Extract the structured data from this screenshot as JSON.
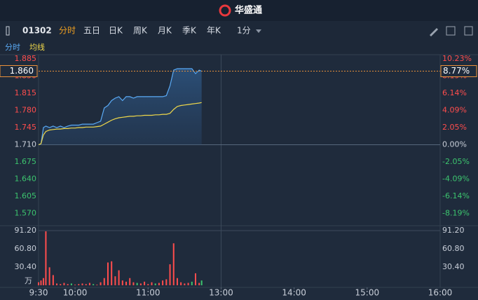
{
  "header": {
    "title": "华盛通"
  },
  "toolbar": {
    "code": "01302",
    "tabs": [
      "分时",
      "五日",
      "日K",
      "周K",
      "月K",
      "季K",
      "年K",
      "1分"
    ]
  },
  "chart_data": {
    "type": "line",
    "legend": [
      "分时",
      "均线"
    ],
    "xlim": [
      0,
      330
    ],
    "xticks": [
      {
        "value": 0,
        "label": "9:30"
      },
      {
        "value": 30,
        "label": "10:00"
      },
      {
        "value": 90,
        "label": "11:00"
      },
      {
        "value": 150,
        "label": "13:00"
      },
      {
        "value": 210,
        "label": "14:00"
      },
      {
        "value": 270,
        "label": "15:00"
      },
      {
        "value": 330,
        "label": "16:00"
      }
    ],
    "ylim": [
      1.545,
      1.885
    ],
    "yticks": [
      1.885,
      {
        "value": 1.85,
        "label": "1.850"
      },
      1.815,
      {
        "value": 1.78,
        "label": "1.780"
      },
      1.745,
      {
        "value": 1.71,
        "label": "1.710"
      },
      1.675,
      {
        "value": 1.64,
        "label": "1.640"
      },
      1.605,
      {
        "value": 1.57,
        "label": "1.570"
      }
    ],
    "y2lim": [
      -9.65,
      10.23
    ],
    "y2ticks": [
      {
        "value": 10.23,
        "label": "10.23%"
      },
      {
        "value": 8.19,
        "label": "8.19%"
      },
      {
        "value": 6.14,
        "label": "6.14%"
      },
      {
        "value": 4.09,
        "label": "4.09%"
      },
      {
        "value": 2.05,
        "label": "2.05%"
      },
      {
        "value": 0,
        "label": "0.00%"
      },
      {
        "value": -2.05,
        "label": "-2.05%"
      },
      {
        "value": -4.09,
        "label": "-4.09%"
      },
      {
        "value": -6.14,
        "label": "-6.14%"
      },
      {
        "value": -8.19,
        "label": "-8.19%"
      }
    ],
    "up_color": "#ff4d4d",
    "down_color": "#3cc46e",
    "flat_color": "#c8ced8",
    "x": [
      0,
      2,
      4,
      6,
      9,
      12,
      15,
      18,
      21,
      24,
      27,
      30,
      33,
      36,
      39,
      42,
      45,
      48,
      51,
      54,
      57,
      60,
      63,
      66,
      69,
      72,
      75,
      78,
      81,
      84,
      87,
      90,
      93,
      96,
      99,
      102,
      105,
      108,
      111,
      114,
      117,
      120,
      123,
      126,
      129,
      132,
      134
    ],
    "series": [
      {
        "name": "分时",
        "color": "#5aaaf5",
        "values": [
          1.71,
          1.712,
          1.745,
          1.748,
          1.745,
          1.748,
          1.745,
          1.748,
          1.745,
          1.748,
          1.75,
          1.75,
          1.75,
          1.752,
          1.752,
          1.752,
          1.752,
          1.755,
          1.758,
          1.785,
          1.79,
          1.8,
          1.805,
          1.808,
          1.8,
          1.808,
          1.808,
          1.805,
          1.808,
          1.808,
          1.808,
          1.808,
          1.808,
          1.808,
          1.808,
          1.808,
          1.81,
          1.83,
          1.862,
          1.865,
          1.865,
          1.865,
          1.865,
          1.865,
          1.855,
          1.862,
          1.86
        ]
      },
      {
        "name": "均线",
        "color": "#f0d84a",
        "values": [
          1.71,
          1.712,
          1.73,
          1.737,
          1.74,
          1.741,
          1.742,
          1.742,
          1.743,
          1.743,
          1.744,
          1.744,
          1.745,
          1.745,
          1.746,
          1.746,
          1.746,
          1.747,
          1.748,
          1.752,
          1.756,
          1.76,
          1.763,
          1.765,
          1.766,
          1.767,
          1.768,
          1.768,
          1.769,
          1.769,
          1.77,
          1.77,
          1.77,
          1.771,
          1.771,
          1.772,
          1.772,
          1.774,
          1.782,
          1.788,
          1.79,
          1.791,
          1.792,
          1.793,
          1.794,
          1.795,
          1.796
        ]
      }
    ],
    "last_price": 1.86,
    "last_price_label": "1.860",
    "last_change": 8.77,
    "last_change_label": "8.77%",
    "volume": {
      "unit": "万",
      "ylim": [
        0,
        91.2
      ],
      "yticks": [
        {
          "value": 30.4,
          "label": "30.40"
        },
        {
          "value": 60.8,
          "label": "60.80"
        },
        {
          "value": 91.2,
          "label": "91.20"
        }
      ],
      "values": [
        5,
        8,
        12,
        90,
        30,
        17,
        3,
        2,
        4,
        2,
        3,
        1,
        2,
        3,
        2,
        4,
        2,
        1,
        5,
        12,
        38,
        40,
        15,
        25,
        8,
        6,
        12,
        5,
        4,
        3,
        6,
        2,
        5,
        3,
        4,
        8,
        10,
        35,
        70,
        12,
        5,
        3,
        4,
        6,
        20,
        4,
        8
      ],
      "colors": [
        "#ff4d4d",
        "#ff4d4d",
        "#ff4d4d",
        "#ff4d4d",
        "#ff4d4d",
        "#ff4d4d",
        "#ff4d4d",
        "#ff4d4d",
        "#ff4d4d",
        "#ff4d4d",
        "#3cc46e",
        "#ff4d4d",
        "#ff4d4d",
        "#ff4d4d",
        "#ff4d4d",
        "#ff4d4d",
        "#3cc46e",
        "#ff4d4d",
        "#ff4d4d",
        "#ff4d4d",
        "#ff4d4d",
        "#ff4d4d",
        "#ff4d4d",
        "#ff4d4d",
        "#ff4d4d",
        "#ff4d4d",
        "#ff4d4d",
        "#ff4d4d",
        "#3cc46e",
        "#ff4d4d",
        "#ff4d4d",
        "#ff4d4d",
        "#ff4d4d",
        "#3cc46e",
        "#ff4d4d",
        "#ff4d4d",
        "#ff4d4d",
        "#ff4d4d",
        "#ff4d4d",
        "#ff4d4d",
        "#ff4d4d",
        "#ff4d4d",
        "#ff4d4d",
        "#3cc46e",
        "#ff4d4d",
        "#ff4d4d",
        "#3cc46e"
      ]
    }
  }
}
